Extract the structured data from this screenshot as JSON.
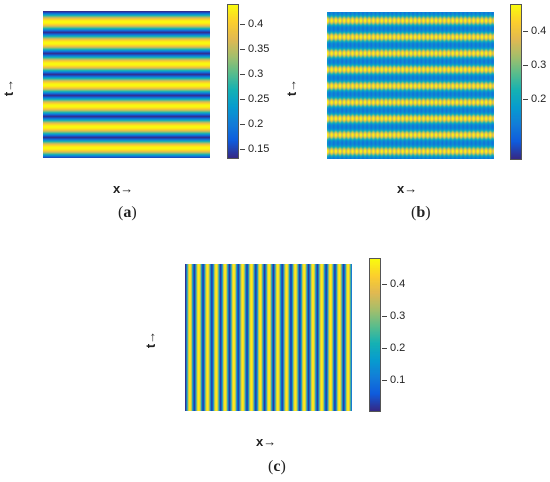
{
  "chart_data": [
    {
      "type": "heatmap",
      "id": "a",
      "caption_letter": "a",
      "xlabel": "x→",
      "ylabel": "t→",
      "pattern": "horizontal-bands",
      "band_count": 7,
      "value_range": [
        0.13,
        0.44
      ],
      "colorbar_ticks": [
        "0.4",
        "0.35",
        "0.3",
        "0.25",
        "0.2",
        "0.15"
      ],
      "colorbar_tick_values": [
        0.4,
        0.35,
        0.3,
        0.25,
        0.2,
        0.15
      ]
    },
    {
      "type": "heatmap",
      "id": "b",
      "caption_letter": "b",
      "xlabel": "x→",
      "ylabel": "t→",
      "pattern": "checker-bands",
      "band_count": 9,
      "stripe_count": 40,
      "value_range": [
        0.02,
        0.48
      ],
      "colorbar_ticks": [
        "0.4",
        "0.3",
        "0.2"
      ],
      "colorbar_tick_values": [
        0.4,
        0.3,
        0.2
      ]
    },
    {
      "type": "heatmap",
      "id": "c",
      "caption_letter": "c",
      "xlabel": "x→",
      "ylabel": "t→",
      "pattern": "vertical-stripes",
      "stripe_count": 19,
      "value_range": [
        0.0,
        0.48
      ],
      "colorbar_ticks": [
        "0.4",
        "0.3",
        "0.2",
        "0.1"
      ],
      "colorbar_tick_values": [
        0.4,
        0.3,
        0.2,
        0.1
      ]
    }
  ]
}
